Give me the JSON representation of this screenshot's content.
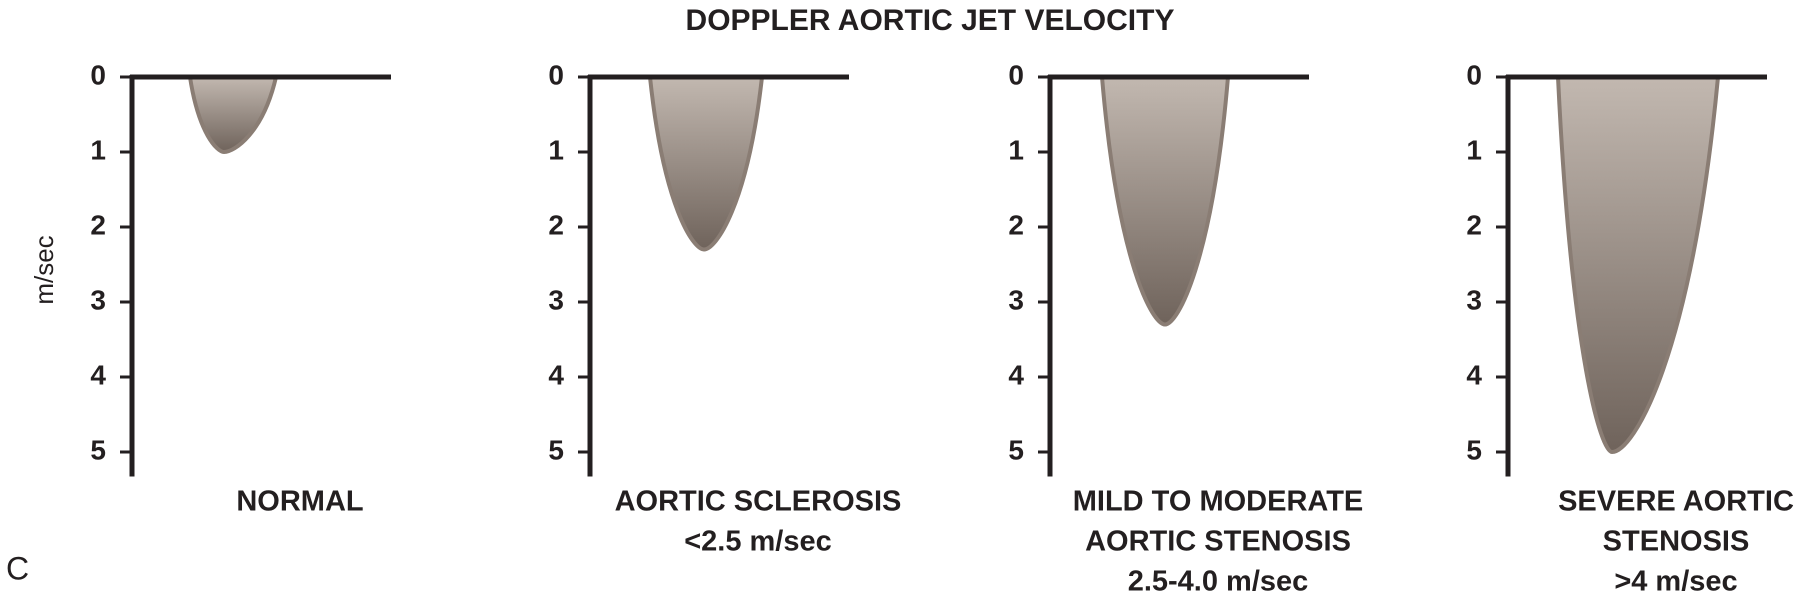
{
  "title": "DOPPLER AORTIC JET VELOCITY",
  "y_label": "m/sec",
  "panel_label": "C",
  "chart_data": [
    {
      "type": "envelope",
      "label": [
        "NORMAL"
      ],
      "peak": 1.0,
      "color": "#8a7d74",
      "ylim": [
        0,
        5.3
      ],
      "yticks": [
        0,
        1,
        2,
        3,
        4,
        5
      ]
    },
    {
      "type": "envelope",
      "label": [
        "AORTIC SCLEROSIS",
        "<2.5 m/sec"
      ],
      "peak": 2.3,
      "color": "#8a7d74",
      "ylim": [
        0,
        5.3
      ],
      "yticks": [
        0,
        1,
        2,
        3,
        4,
        5
      ]
    },
    {
      "type": "envelope",
      "label": [
        "MILD TO MODERATE",
        "AORTIC STENOSIS",
        "2.5-4.0 m/sec"
      ],
      "peak": 3.3,
      "color": "#8a7d74",
      "ylim": [
        0,
        5.3
      ],
      "yticks": [
        0,
        1,
        2,
        3,
        4,
        5
      ]
    },
    {
      "type": "envelope",
      "label": [
        "SEVERE AORTIC",
        "STENOSIS",
        ">4 m/sec"
      ],
      "peak": 5.0,
      "color": "#8a7d74",
      "ylim": [
        0,
        5.3
      ],
      "yticks": [
        0,
        1,
        2,
        3,
        4,
        5
      ]
    }
  ]
}
